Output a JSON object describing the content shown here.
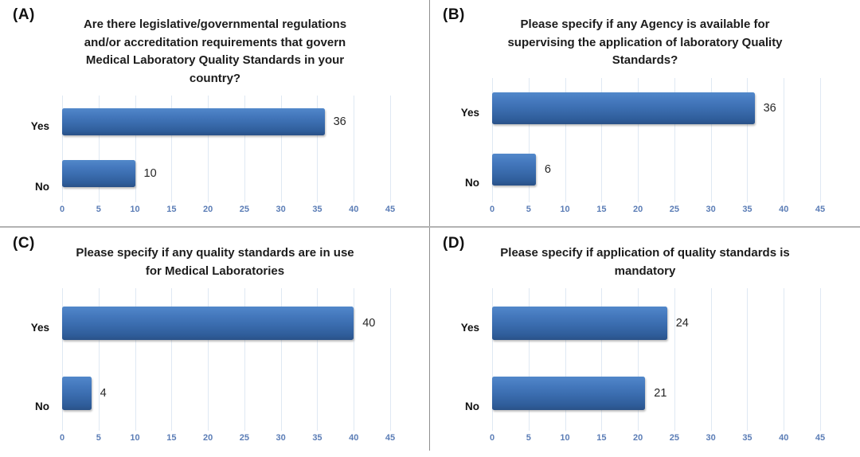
{
  "figure": {
    "description": "Four-panel horizontal bar chart figure on laboratory quality standards survey",
    "background": "#ffffff"
  },
  "colors": {
    "bar_blue": "#3a6cae",
    "bar_blue_light": "#5288ca",
    "bar_blue_dark": "#2a5187",
    "tick_label_blue": "#5b7db6",
    "gridline": "#dfe8f3",
    "divider_gray": "#8f8f8f",
    "title_text": "#1c1c1c"
  },
  "chart_data": [
    {
      "type": "bar",
      "orientation": "horizontal",
      "panel_label": "(A)",
      "title": "Are there legislative/governmental regulations and/or accreditation requirements that govern Medical Laboratory Quality Standards in your country?",
      "categories": [
        "Yes",
        "No"
      ],
      "values": [
        36,
        10
      ],
      "xlabel": "",
      "ylabel": "",
      "xlim": [
        0,
        45
      ],
      "xticks": [
        0,
        5,
        10,
        15,
        20,
        25,
        30,
        35,
        40,
        45
      ],
      "grid": true,
      "legend": false,
      "data_labels": true
    },
    {
      "type": "bar",
      "orientation": "horizontal",
      "panel_label": "(B)",
      "title": "Please specify if any Agency is available for supervising the application of laboratory Quality Standards?",
      "categories": [
        "Yes",
        "No"
      ],
      "values": [
        36,
        6
      ],
      "xlabel": "",
      "ylabel": "",
      "xlim": [
        0,
        45
      ],
      "xticks": [
        0,
        5,
        10,
        15,
        20,
        25,
        30,
        35,
        40,
        45
      ],
      "grid": true,
      "legend": false,
      "data_labels": true
    },
    {
      "type": "bar",
      "orientation": "horizontal",
      "panel_label": "(C)",
      "title": "Please specify if any quality standards are in use for Medical Laboratories",
      "categories": [
        "Yes",
        "No"
      ],
      "values": [
        40,
        4
      ],
      "xlabel": "",
      "ylabel": "",
      "xlim": [
        0,
        45
      ],
      "xticks": [
        0,
        5,
        10,
        15,
        20,
        25,
        30,
        35,
        40,
        45
      ],
      "grid": true,
      "legend": false,
      "data_labels": true
    },
    {
      "type": "bar",
      "orientation": "horizontal",
      "panel_label": "(D)",
      "title": "Please specify if application of quality standards is mandatory",
      "categories": [
        "Yes",
        "No"
      ],
      "values": [
        24,
        21
      ],
      "xlabel": "",
      "ylabel": "",
      "xlim": [
        0,
        45
      ],
      "xticks": [
        0,
        5,
        10,
        15,
        20,
        25,
        30,
        35,
        40,
        45
      ],
      "grid": true,
      "legend": false,
      "data_labels": true
    }
  ]
}
